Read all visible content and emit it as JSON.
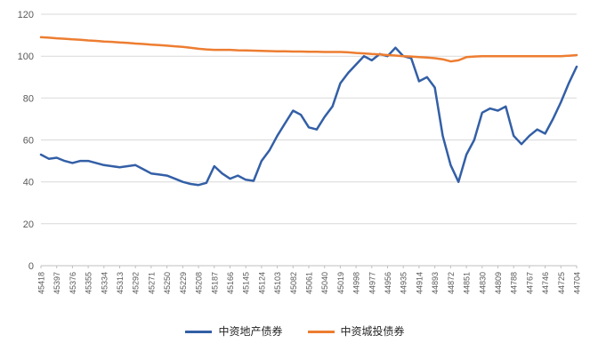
{
  "chart_data": {
    "type": "line",
    "title": "",
    "xlabel": "",
    "ylabel": "",
    "x_labels": [
      "45418",
      "45397",
      "45376",
      "45355",
      "45334",
      "45313",
      "45292",
      "45271",
      "45250",
      "45229",
      "45208",
      "45187",
      "45166",
      "45145",
      "45124",
      "45103",
      "45082",
      "45061",
      "45040",
      "45019",
      "44998",
      "44977",
      "44956",
      "44935",
      "44914",
      "44893",
      "44872",
      "44851",
      "44830",
      "44809",
      "44788",
      "44767",
      "44746",
      "44725",
      "44704"
    ],
    "series": [
      {
        "name": "中资地产债券",
        "color": "#335FA6",
        "values": [
          53,
          51,
          51.5,
          50,
          49,
          50,
          50,
          49,
          48,
          47.5,
          47,
          47.5,
          48,
          46,
          44,
          43.5,
          43,
          41.5,
          40,
          39,
          38.5,
          39.5,
          47.5,
          44,
          41.5,
          43,
          41,
          40.5,
          50,
          55,
          62,
          68,
          74,
          72,
          66,
          65,
          71,
          76,
          87,
          92,
          96,
          100,
          98,
          101,
          100,
          104,
          100,
          99,
          88,
          90,
          85,
          62,
          48,
          40,
          53,
          60,
          73,
          75,
          74,
          76,
          62,
          58,
          62,
          65,
          63,
          70,
          78,
          87,
          95
        ]
      },
      {
        "name": "中资城投债券",
        "color": "#ED7D31",
        "values": [
          109,
          108.8,
          108.5,
          108.3,
          108,
          107.8,
          107.5,
          107.3,
          107,
          106.8,
          106.5,
          106.3,
          106,
          105.8,
          105.5,
          105.3,
          105,
          104.7,
          104.4,
          104,
          103.5,
          103.2,
          103,
          103,
          103,
          102.8,
          102.7,
          102.6,
          102.5,
          102.4,
          102.3,
          102.3,
          102.2,
          102.2,
          102.1,
          102.1,
          102,
          102,
          102,
          101.8,
          101.5,
          101.3,
          101,
          100.8,
          100.5,
          100.3,
          100,
          99.8,
          99.5,
          99.3,
          99,
          98.5,
          97.5,
          98,
          99.5,
          99.8,
          100,
          100,
          100,
          100,
          100,
          100,
          100,
          100,
          100,
          100,
          100,
          100.2,
          100.5
        ]
      }
    ],
    "ylim": [
      0,
      120
    ],
    "yticks": [
      0,
      20,
      40,
      60,
      80,
      100,
      120
    ],
    "grid": true,
    "grid_color": "#D9D9D9",
    "axis_color": "#BFBFBF",
    "tick_label_color": "#595959",
    "legend_position": "bottom"
  }
}
